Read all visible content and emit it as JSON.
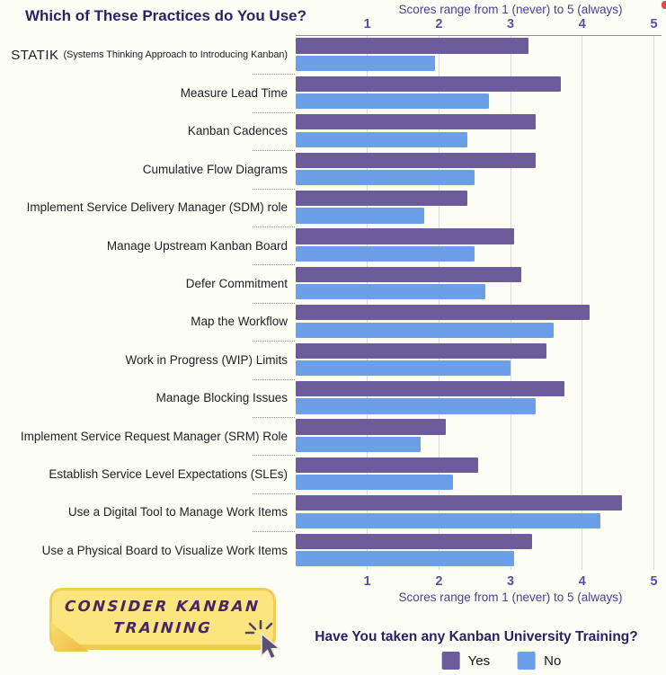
{
  "page": {
    "background": "#fcfef6"
  },
  "header": {
    "title": "Which of These Practices do You Use?"
  },
  "axis": {
    "top_label": "Scores range from 1 (never) to 5 (always)",
    "bottom_label": "Scores range from 1 (never) to 5 (always)"
  },
  "chart_data": {
    "type": "bar",
    "orientation": "horizontal",
    "title": "Which of These Practices do You Use?",
    "xlabel": "Scores range from 1 (never) to 5 (always)",
    "ylabel": "",
    "xlim": [
      0,
      5
    ],
    "xticks": [
      1,
      2,
      3,
      4,
      5
    ],
    "grid": "vertical",
    "legend_position": "bottom",
    "categories": [
      {
        "label": "STATIK",
        "sublabel": "(Systems Thinking Approach to Introducing Kanban)"
      },
      {
        "label": "Measure Lead Time"
      },
      {
        "label": "Kanban Cadences"
      },
      {
        "label": "Cumulative Flow Diagrams"
      },
      {
        "label": "Implement Service Delivery Manager (SDM) role"
      },
      {
        "label": "Manage Upstream Kanban Board"
      },
      {
        "label": "Defer Commitment"
      },
      {
        "label": "Map the Workflow"
      },
      {
        "label": "Work in Progress (WIP) Limits"
      },
      {
        "label": "Manage Blocking Issues"
      },
      {
        "label": "Implement Service Request Manager (SRM) Role"
      },
      {
        "label": "Establish Service Level Expectations (SLEs)"
      },
      {
        "label": "Use a Digital Tool to Manage Work Items"
      },
      {
        "label": "Use a Physical Board to Visualize Work Items"
      }
    ],
    "series": [
      {
        "name": "Yes",
        "color": "#6d5c9b",
        "values": [
          3.25,
          3.7,
          3.35,
          3.35,
          2.4,
          3.05,
          3.15,
          4.1,
          3.5,
          3.75,
          2.1,
          2.55,
          4.55,
          3.3
        ]
      },
      {
        "name": "No",
        "color": "#6ba0e8",
        "values": [
          1.95,
          2.7,
          2.4,
          2.5,
          1.8,
          2.5,
          2.65,
          3.6,
          3.0,
          3.35,
          1.75,
          2.2,
          4.25,
          3.05
        ]
      }
    ]
  },
  "legend": {
    "title": "Have You taken any Kanban University Training?",
    "items": [
      {
        "label": "Yes",
        "color": "#6d5c9b"
      },
      {
        "label": "No",
        "color": "#6ba0e8"
      }
    ]
  },
  "sticky_note": {
    "line1": "CONSIDER KANBAN",
    "line2": "TRAINING"
  },
  "colors": {
    "bar_yes": "#6d5c9b",
    "bar_no": "#6ba0e8",
    "title_text": "#2c2166",
    "tick_text": "#5b4fa5",
    "axis_label_text": "#4a3f92",
    "gridline": "#dcdcdc",
    "note_fill": "#fbe57f",
    "note_border": "#f2cd55",
    "note_text": "#482566",
    "red_marker": "#ee4040"
  }
}
